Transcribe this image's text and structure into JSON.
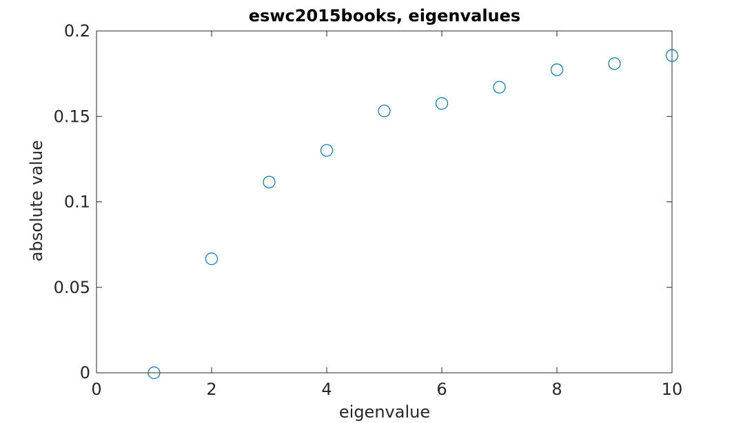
{
  "chart_data": {
    "type": "scatter",
    "title": "eswc2015books, eigenvalues",
    "xlabel": "eigenvalue",
    "ylabel": "absolute value",
    "xlim": [
      0,
      10
    ],
    "ylim": [
      0,
      0.2
    ],
    "xticks": [
      0,
      2,
      4,
      6,
      8,
      10
    ],
    "xtick_labels": [
      "0",
      "2",
      "4",
      "6",
      "8",
      "10"
    ],
    "yticks": [
      0,
      0.05,
      0.1,
      0.15,
      0.2
    ],
    "ytick_labels": [
      "0",
      "0.05",
      "0.1",
      "0.15",
      "0.2"
    ],
    "grid": false,
    "legend": "none",
    "marker": "open-circle",
    "marker_color": "#0072bd",
    "axis_color": "#262626",
    "series": [
      {
        "x": [
          1,
          2,
          3,
          4,
          5,
          6,
          7,
          8,
          9,
          10
        ],
        "y": [
          0.0,
          0.0667,
          0.1116,
          0.1301,
          0.1532,
          0.1576,
          0.1671,
          0.1773,
          0.1809,
          0.1856
        ]
      }
    ]
  }
}
